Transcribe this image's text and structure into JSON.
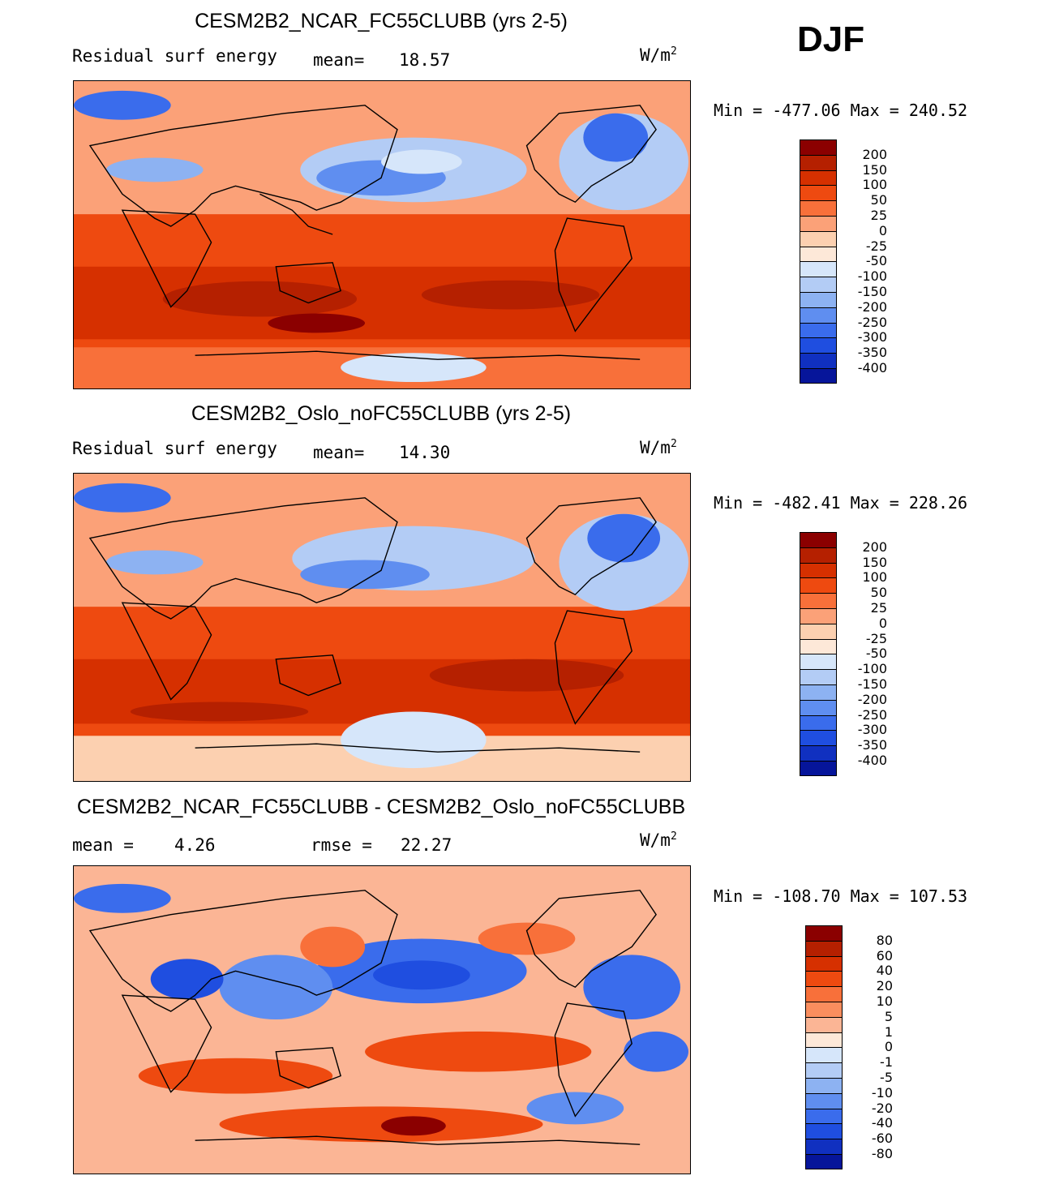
{
  "season": "DJF",
  "panels": [
    {
      "id": "top",
      "title": "CESM2B2_NCAR_FC55CLUBB (yrs 2-5)",
      "left_label": "Residual surf energy",
      "stat1_label": "mean=",
      "stat1_value": "18.57",
      "stat2_label": "",
      "stat2_value": "",
      "units": "W/m",
      "units_exp": "2",
      "min_text": "Min = -477.06 Max = 240.52",
      "field": "abs"
    },
    {
      "id": "middle",
      "title": "CESM2B2_Oslo_noFC55CLUBB (yrs 2-5)",
      "left_label": "Residual surf energy",
      "stat1_label": "mean=",
      "stat1_value": "14.30",
      "stat2_label": "",
      "stat2_value": "",
      "units": "W/m",
      "units_exp": "2",
      "min_text": "Min = -482.41 Max = 228.26",
      "field": "abs"
    },
    {
      "id": "diff",
      "title": "CESM2B2_NCAR_FC55CLUBB - CESM2B2_Oslo_noFC55CLUBB",
      "left_label": "mean =",
      "stat1_label": "4.26",
      "stat1_value": "",
      "stat2_label": "rmse =",
      "stat2_value": "22.27",
      "units": "W/m",
      "units_exp": "2",
      "min_text": "Min = -108.70 Max = 107.53",
      "field": "diff"
    }
  ],
  "colorbars": {
    "abs": {
      "levels": [
        "200",
        "150",
        "100",
        "50",
        "25",
        "0",
        "-25",
        "-50",
        "-100",
        "-150",
        "-200",
        "-250",
        "-300",
        "-350",
        "-400"
      ],
      "colors": [
        "#8b0000",
        "#b52000",
        "#d63000",
        "#ee4a10",
        "#f8703a",
        "#fba178",
        "#fcd0b0",
        "#fde8d8",
        "#d6e6fa",
        "#b3ccf5",
        "#8db2f2",
        "#5f8ef0",
        "#3a6cec",
        "#1f4ee0",
        "#1030c0",
        "#06159a"
      ]
    },
    "diff": {
      "levels": [
        "80",
        "60",
        "40",
        "20",
        "10",
        "5",
        "1",
        "0",
        "-1",
        "-5",
        "-10",
        "-20",
        "-40",
        "-60",
        "-80"
      ],
      "colors": [
        "#8b0000",
        "#b52000",
        "#d63000",
        "#ee4a10",
        "#f8703a",
        "#fa8e5e",
        "#fbb595",
        "#fde8d8",
        "#d6e6fa",
        "#b3ccf5",
        "#8db2f2",
        "#5f8ef0",
        "#3a6cec",
        "#1f4ee0",
        "#1030c0",
        "#06159a"
      ]
    }
  }
}
